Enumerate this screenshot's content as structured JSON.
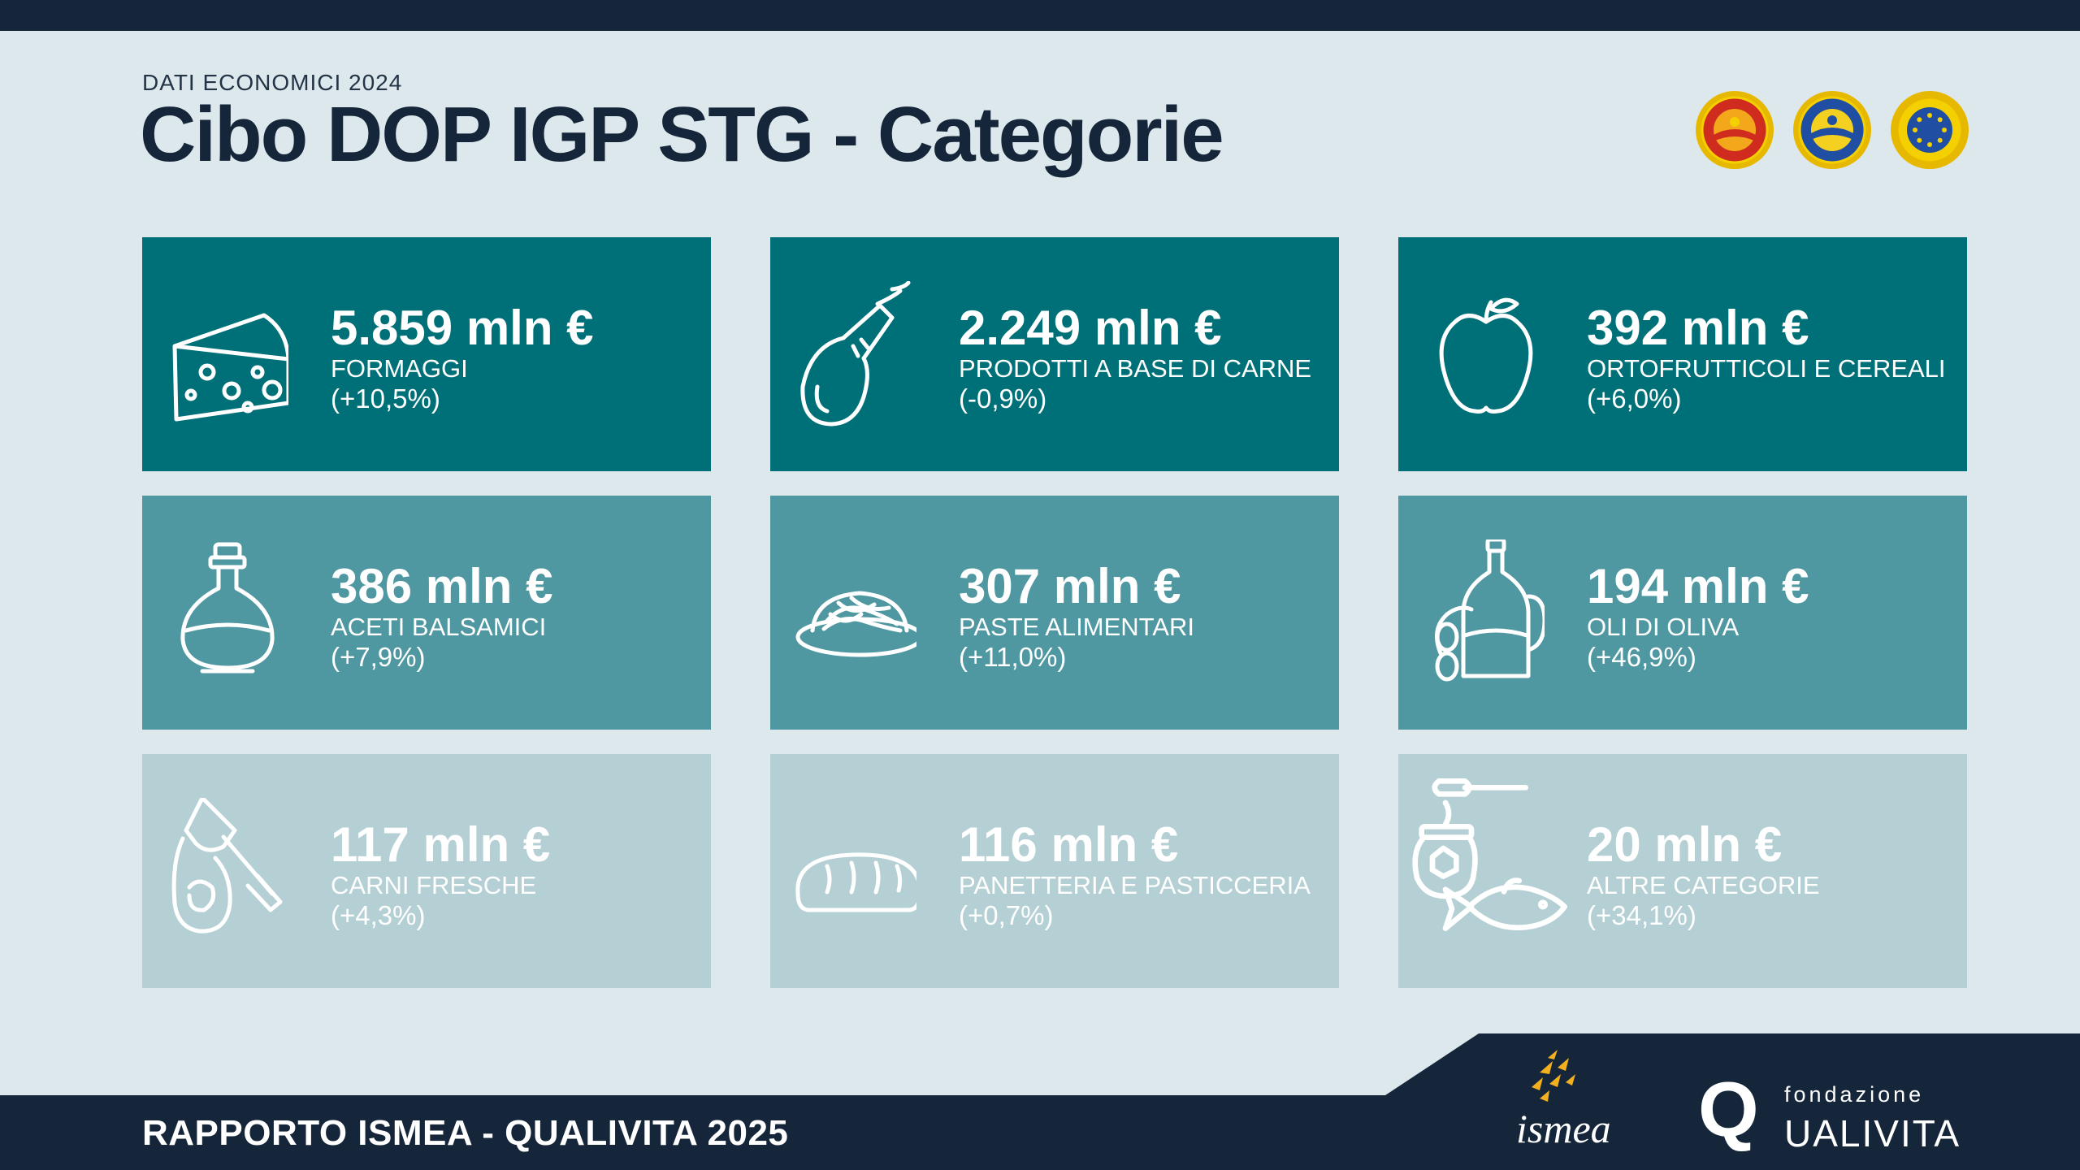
{
  "header": {
    "kicker": "DATI ECONOMICI 2024",
    "title": "Cibo DOP IGP STG - Categorie"
  },
  "colors": {
    "row1": "#007078",
    "row2": "#4f97a1",
    "row3": "#b5d0d4",
    "navy": "#16263a",
    "background": "#dde8ec"
  },
  "cards": [
    {
      "value": "5.859 mln €",
      "category": "FORMAGGI",
      "change": "(+10,5%)",
      "icon": "cheese-icon"
    },
    {
      "value": "2.249 mln €",
      "category": "PRODOTTI A BASE DI CARNE",
      "change": "(-0,9%)",
      "icon": "ham-icon"
    },
    {
      "value": "392 mln €",
      "category": "ORTOFRUTTICOLI E CEREALI",
      "change": "(+6,0%)",
      "icon": "apple-icon"
    },
    {
      "value": "386 mln €",
      "category": "ACETI BALSAMICI",
      "change": "(+7,9%)",
      "icon": "vinegar-bottle-icon"
    },
    {
      "value": "307 mln €",
      "category": "PASTE ALIMENTARI",
      "change": "(+11,0%)",
      "icon": "pasta-plate-icon"
    },
    {
      "value": "194 mln €",
      "category": "OLI DI OLIVA",
      "change": "(+46,9%)",
      "icon": "olive-oil-icon"
    },
    {
      "value": "117 mln €",
      "category": "CARNI FRESCHE",
      "change": "(+4,3%)",
      "icon": "meat-cleaver-icon"
    },
    {
      "value": "116 mln €",
      "category": "PANETTERIA E PASTICCERIA",
      "change": "(+0,7%)",
      "icon": "bread-icon"
    },
    {
      "value": "20 mln €",
      "category": "ALTRE CATEGORIE",
      "change": "(+34,1%)",
      "icon": "honey-fish-icon"
    }
  ],
  "seals": [
    "dop-seal-icon",
    "igp-seal-icon",
    "stg-seal-icon"
  ],
  "footer": {
    "report": "RAPPORTO ISMEA - QUALIVITA 2025",
    "ismea_logo": "ismea",
    "qualivita_fondazione": "fondazione",
    "qualivita_name": "UALIVITA",
    "qualivita_q": "Q"
  }
}
